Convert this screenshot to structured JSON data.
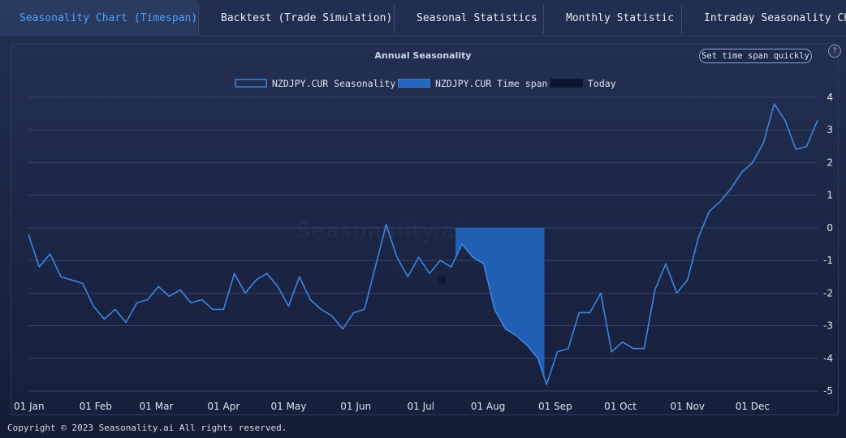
{
  "tabs": [
    {
      "label": "Seasonality Chart (Timespan)",
      "active": true
    },
    {
      "label": "Backtest (Trade Simulation)",
      "active": false
    },
    {
      "label": "Seasonal Statistics",
      "active": false
    },
    {
      "label": "Monthly Statistic",
      "active": false
    },
    {
      "label": "Intraday Seasonality Chart",
      "active": false
    }
  ],
  "chart": {
    "title": "Annual Seasonality",
    "quick_button": "Set time span quickly",
    "help_icon": "?",
    "watermark": "Seasonality.ai",
    "legend": [
      {
        "label": "NZDJPY.CUR Seasonality",
        "swatch": "outline",
        "color": "#2f6fbf"
      },
      {
        "label": "NZDJPY.CUR Time span",
        "swatch": "fill",
        "color": "#2466c0"
      },
      {
        "label": "Today",
        "swatch": "fill",
        "color": "#0e1530"
      }
    ]
  },
  "colors": {
    "line": "#3d84e0",
    "fill": "#2262ba",
    "accent": "#4da3ff",
    "today": "#0e1530"
  },
  "chart_data": {
    "type": "line",
    "title": "Annual Seasonality",
    "ylim": [
      -5,
      4
    ],
    "y_ticks": [
      4,
      3,
      2,
      1,
      0,
      -1,
      -2,
      -3,
      -4,
      -5
    ],
    "x_ticks": [
      "01 Jan",
      "01 Feb",
      "01 Mar",
      "01 Apr",
      "01 May",
      "01 Jun",
      "01 Jul",
      "01 Aug",
      "01 Sep",
      "01 Oct",
      "01 Nov",
      "01 Dec"
    ],
    "series": [
      {
        "name": "NZDJPY.CUR Seasonality",
        "x": [
          "01-01",
          "01-06",
          "01-11",
          "01-16",
          "01-21",
          "01-26",
          "01-31",
          "02-05",
          "02-10",
          "02-15",
          "02-20",
          "02-25",
          "03-02",
          "03-07",
          "03-12",
          "03-17",
          "03-22",
          "03-27",
          "04-01",
          "04-06",
          "04-11",
          "04-16",
          "04-21",
          "04-26",
          "05-01",
          "05-06",
          "05-11",
          "05-16",
          "05-21",
          "05-26",
          "05-31",
          "06-05",
          "06-10",
          "06-15",
          "06-20",
          "06-25",
          "06-30",
          "07-05",
          "07-10",
          "07-15",
          "07-20",
          "07-25",
          "07-30",
          "08-04",
          "08-09",
          "08-14",
          "08-19",
          "08-24",
          "08-28",
          "09-02",
          "09-07",
          "09-12",
          "09-17",
          "09-22",
          "09-27",
          "10-02",
          "10-07",
          "10-12",
          "10-17",
          "10-22",
          "10-27",
          "11-01",
          "11-06",
          "11-11",
          "11-16",
          "11-21",
          "11-26",
          "12-01",
          "12-06",
          "12-11",
          "12-16",
          "12-21",
          "12-26",
          "12-31"
        ],
        "y": [
          -0.2,
          -1.2,
          -0.8,
          -1.5,
          -1.6,
          -1.7,
          -2.4,
          -2.8,
          -2.5,
          -2.9,
          -2.3,
          -2.2,
          -1.8,
          -2.1,
          -1.9,
          -2.3,
          -2.2,
          -2.5,
          -2.5,
          -1.4,
          -2.0,
          -1.6,
          -1.4,
          -1.8,
          -2.4,
          -1.5,
          -2.2,
          -2.5,
          -2.7,
          -3.1,
          -2.6,
          -2.5,
          -1.2,
          0.1,
          -0.9,
          -1.5,
          -0.9,
          -1.4,
          -1.0,
          -1.2,
          -0.5,
          -0.9,
          -1.1,
          -2.5,
          -3.1,
          -3.3,
          -3.6,
          -4.0,
          -4.8,
          -3.8,
          -3.7,
          -2.6,
          -2.6,
          -2.0,
          -3.8,
          -3.5,
          -3.7,
          -3.7,
          -1.9,
          -1.1,
          -2.0,
          -1.6,
          -0.3,
          0.5,
          0.8,
          1.2,
          1.7,
          2.0,
          2.6,
          3.8,
          3.3,
          2.4,
          2.5,
          3.3
        ]
      },
      {
        "name": "NZDJPY.CUR Time span",
        "x": [
          "07-17",
          "08-27"
        ],
        "y": [
          0,
          0
        ]
      },
      {
        "name": "Today",
        "x": [
          "07-11"
        ],
        "y": [
          -1.6
        ]
      }
    ]
  },
  "footer": "Copyright © 2023 Seasonality.ai All rights reserved."
}
